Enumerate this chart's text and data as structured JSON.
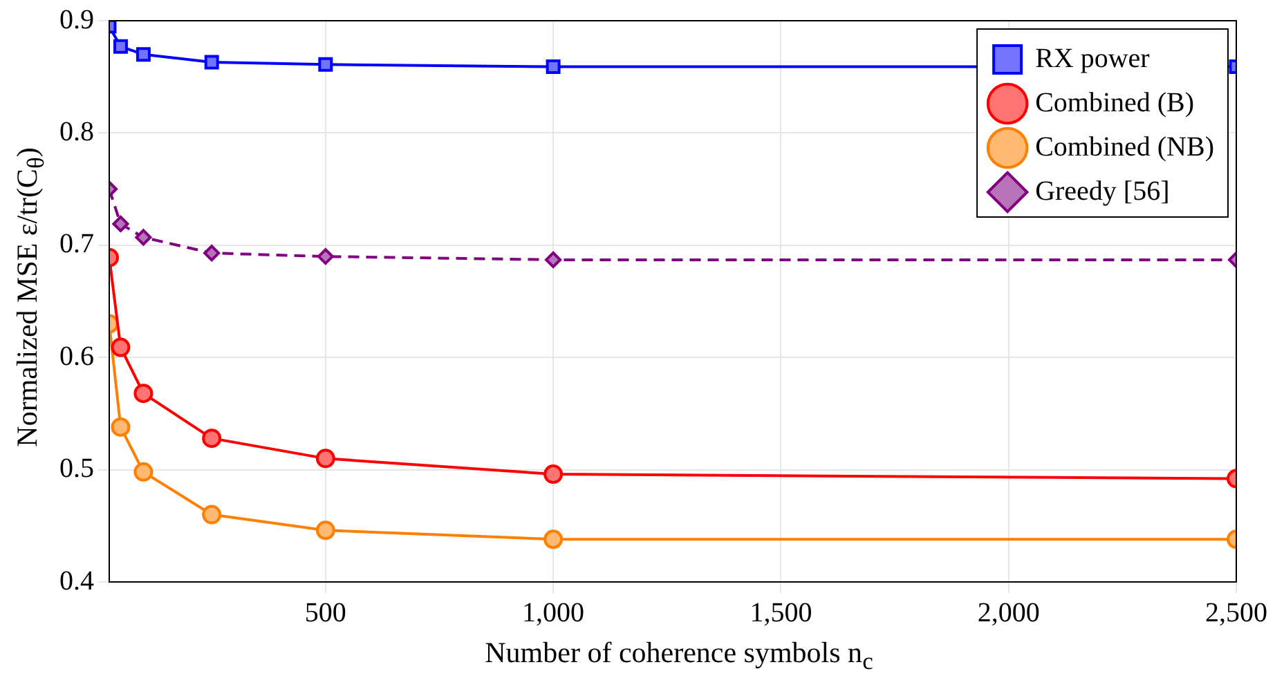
{
  "chart_data": {
    "type": "line",
    "xlabel": "Number of coherence symbols n$_{c}$",
    "ylabel": "Normalized MSE ε/tr(C$_{θ}$)",
    "x": [
      25,
      50,
      100,
      250,
      500,
      1000,
      2500
    ],
    "series": [
      {
        "name": "RX power",
        "color": "#0000ff",
        "marker": "square",
        "line_style": "solid",
        "values": [
          0.895,
          0.877,
          0.87,
          0.863,
          0.861,
          0.859,
          0.859
        ]
      },
      {
        "name": "Combined (B)",
        "color": "#ff0000",
        "marker": "circle",
        "line_style": "solid",
        "values": [
          0.689,
          0.609,
          0.568,
          0.528,
          0.51,
          0.496,
          0.492
        ]
      },
      {
        "name": "Combined (NB)",
        "color": "#ff8000",
        "marker": "circle",
        "line_style": "solid",
        "values": [
          0.63,
          0.538,
          0.498,
          0.46,
          0.446,
          0.438,
          0.438
        ]
      },
      {
        "name": "Greedy [56]",
        "color": "#800080",
        "marker": "diamond",
        "line_style": "dashed",
        "values": [
          0.75,
          0.719,
          0.707,
          0.693,
          0.69,
          0.687,
          0.687
        ]
      }
    ],
    "xlim": [
      25,
      2500
    ],
    "xticks": [
      500,
      {
        "value": 1000,
        "label": "1,000"
      },
      {
        "value": 1500,
        "label": "1,500"
      },
      {
        "value": 2000,
        "label": "2,000"
      },
      {
        "value": 2500,
        "label": "2,500"
      }
    ],
    "ylim": [
      0.4,
      0.9
    ],
    "yticks": [
      0.4,
      0.5,
      0.6,
      0.7,
      0.8,
      0.9
    ],
    "grid": true,
    "legend": "top right"
  }
}
